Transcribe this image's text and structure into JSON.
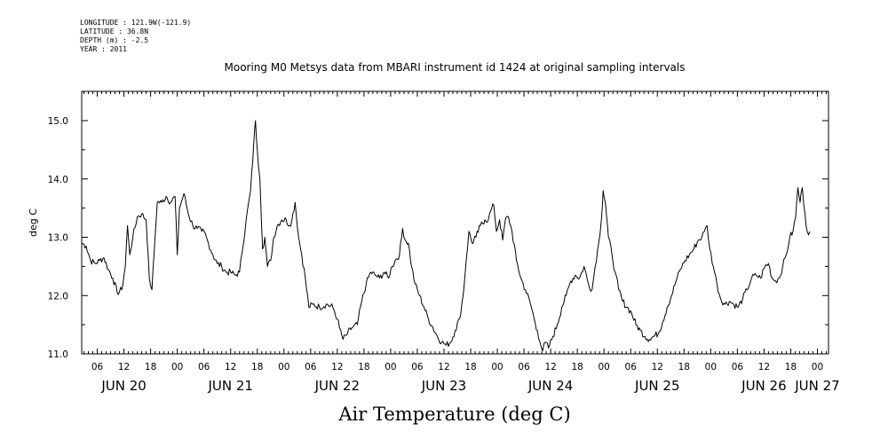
{
  "metadata": [
    "LONGITUDE : 121.9W(-121.9)",
    "LATITUDE : 36.8N",
    "DEPTH (m) : -2.5",
    "YEAR : 2011"
  ],
  "chart_data": {
    "type": "line",
    "title": "Mooring M0 Metsys data from MBARI instrument id 1424 at original sampling intervals",
    "xlabel": "Air Temperature (deg C)",
    "ylabel": "deg C",
    "ylim": [
      11.0,
      15.5
    ],
    "yticks": [
      "11.0",
      "12.0",
      "13.0",
      "14.0",
      "15.0"
    ],
    "x_unit": "hours since JUN 20 00:00 (2011)",
    "xlim": [
      2.5,
      170.5
    ],
    "hour_tick_labels": [
      {
        "hour": 6,
        "label": "06"
      },
      {
        "hour": 12,
        "label": "12"
      },
      {
        "hour": 18,
        "label": "18"
      },
      {
        "hour": 24,
        "label": "00"
      },
      {
        "hour": 30,
        "label": "06"
      },
      {
        "hour": 36,
        "label": "12"
      },
      {
        "hour": 42,
        "label": "18"
      },
      {
        "hour": 48,
        "label": "00"
      },
      {
        "hour": 54,
        "label": "06"
      },
      {
        "hour": 60,
        "label": "12"
      },
      {
        "hour": 66,
        "label": "18"
      },
      {
        "hour": 72,
        "label": "00"
      },
      {
        "hour": 78,
        "label": "06"
      },
      {
        "hour": 84,
        "label": "12"
      },
      {
        "hour": 90,
        "label": "18"
      },
      {
        "hour": 96,
        "label": "00"
      },
      {
        "hour": 102,
        "label": "06"
      },
      {
        "hour": 108,
        "label": "12"
      },
      {
        "hour": 114,
        "label": "18"
      },
      {
        "hour": 120,
        "label": "00"
      },
      {
        "hour": 126,
        "label": "06"
      },
      {
        "hour": 132,
        "label": "12"
      },
      {
        "hour": 138,
        "label": "18"
      },
      {
        "hour": 144,
        "label": "00"
      },
      {
        "hour": 150,
        "label": "06"
      },
      {
        "hour": 156,
        "label": "12"
      },
      {
        "hour": 162,
        "label": "18"
      },
      {
        "hour": 168,
        "label": "00"
      }
    ],
    "day_labels": [
      {
        "hour": 12,
        "label": "JUN 20"
      },
      {
        "hour": 36,
        "label": "JUN 21"
      },
      {
        "hour": 60,
        "label": "JUN 22"
      },
      {
        "hour": 84,
        "label": "JUN 23"
      },
      {
        "hour": 108,
        "label": "JUN 24"
      },
      {
        "hour": 132,
        "label": "JUN 25"
      },
      {
        "hour": 156,
        "label": "JUN 26"
      },
      {
        "hour": 168,
        "label": "JUN 27"
      }
    ],
    "series": [
      {
        "color": "#000000",
        "points": [
          [
            2.5,
            12.9
          ],
          [
            3.5,
            12.85
          ],
          [
            4.5,
            12.6
          ],
          [
            5.5,
            12.55
          ],
          [
            6.5,
            12.6
          ],
          [
            7.5,
            12.65
          ],
          [
            8.5,
            12.45
          ],
          [
            9.5,
            12.3
          ],
          [
            10.5,
            12.05
          ],
          [
            11.5,
            12.1
          ],
          [
            12.3,
            12.5
          ],
          [
            12.8,
            13.2
          ],
          [
            13.3,
            12.7
          ],
          [
            14,
            13.0
          ],
          [
            15,
            13.35
          ],
          [
            16,
            13.4
          ],
          [
            17,
            13.3
          ],
          [
            17.7,
            12.3
          ],
          [
            18.3,
            12.1
          ],
          [
            19,
            13.0
          ],
          [
            19.5,
            13.6
          ],
          [
            20.5,
            13.6
          ],
          [
            21.5,
            13.7
          ],
          [
            22.5,
            13.6
          ],
          [
            23.5,
            13.7
          ],
          [
            24,
            12.7
          ],
          [
            24.5,
            13.5
          ],
          [
            25.5,
            13.75
          ],
          [
            26.5,
            13.4
          ],
          [
            27.5,
            13.2
          ],
          [
            28.5,
            13.15
          ],
          [
            29.5,
            13.1
          ],
          [
            30,
            13.1
          ],
          [
            31,
            12.9
          ],
          [
            32,
            12.7
          ],
          [
            33,
            12.55
          ],
          [
            34,
            12.5
          ],
          [
            35,
            12.4
          ],
          [
            36,
            12.4
          ],
          [
            37,
            12.35
          ],
          [
            38,
            12.4
          ],
          [
            38.5,
            12.7
          ],
          [
            39.5,
            13.3
          ],
          [
            40.5,
            13.8
          ],
          [
            41.2,
            14.6
          ],
          [
            41.6,
            15.0
          ],
          [
            42,
            14.5
          ],
          [
            42.6,
            14.0
          ],
          [
            43.2,
            12.8
          ],
          [
            43.7,
            13.0
          ],
          [
            44.3,
            12.5
          ],
          [
            45,
            12.6
          ],
          [
            45.7,
            13.0
          ],
          [
            46.5,
            13.2
          ],
          [
            47.5,
            13.3
          ],
          [
            48.5,
            13.3
          ],
          [
            49.2,
            13.2
          ],
          [
            49.8,
            13.3
          ],
          [
            50.5,
            13.6
          ],
          [
            51.3,
            13.0
          ],
          [
            52,
            12.7
          ],
          [
            52.8,
            12.3
          ],
          [
            53.6,
            11.8
          ],
          [
            54.5,
            11.85
          ],
          [
            56,
            11.8
          ],
          [
            57.5,
            11.85
          ],
          [
            59,
            11.8
          ],
          [
            60,
            11.6
          ],
          [
            60.5,
            11.45
          ],
          [
            61.3,
            11.25
          ],
          [
            62.3,
            11.35
          ],
          [
            63.3,
            11.45
          ],
          [
            64.5,
            11.5
          ],
          [
            65.5,
            11.9
          ],
          [
            66.5,
            12.2
          ],
          [
            67.5,
            12.4
          ],
          [
            68.5,
            12.35
          ],
          [
            69.5,
            12.3
          ],
          [
            70.5,
            12.4
          ],
          [
            71.5,
            12.3
          ],
          [
            72.3,
            12.5
          ],
          [
            73,
            12.6
          ],
          [
            74,
            12.7
          ],
          [
            74.7,
            13.15
          ],
          [
            75.3,
            12.95
          ],
          [
            76,
            12.9
          ],
          [
            76.7,
            12.5
          ],
          [
            77.5,
            12.2
          ],
          [
            78.5,
            12.0
          ],
          [
            79.5,
            11.8
          ],
          [
            80.5,
            11.6
          ],
          [
            81.5,
            11.45
          ],
          [
            82.5,
            11.3
          ],
          [
            83.5,
            11.2
          ],
          [
            84.5,
            11.15
          ],
          [
            85.5,
            11.2
          ],
          [
            86.5,
            11.4
          ],
          [
            87.5,
            11.6
          ],
          [
            88.3,
            12.0
          ],
          [
            89,
            12.6
          ],
          [
            89.6,
            13.1
          ],
          [
            90.3,
            12.9
          ],
          [
            91.2,
            13.0
          ],
          [
            92.2,
            13.2
          ],
          [
            93.2,
            13.3
          ],
          [
            94,
            13.3
          ],
          [
            94.5,
            13.45
          ],
          [
            95.2,
            13.55
          ],
          [
            95.8,
            13.1
          ],
          [
            96.5,
            13.3
          ],
          [
            97.2,
            12.95
          ],
          [
            97.8,
            13.3
          ],
          [
            98.5,
            13.35
          ],
          [
            99.3,
            13.1
          ],
          [
            100.3,
            12.6
          ],
          [
            101.3,
            12.3
          ],
          [
            102.3,
            12.1
          ],
          [
            103.3,
            11.9
          ],
          [
            104.3,
            11.6
          ],
          [
            105,
            11.4
          ],
          [
            105.6,
            11.2
          ],
          [
            106.2,
            11.05
          ],
          [
            106.8,
            11.2
          ],
          [
            107.5,
            11.1
          ],
          [
            108.5,
            11.3
          ],
          [
            109.5,
            11.5
          ],
          [
            110.5,
            11.8
          ],
          [
            111.5,
            12.0
          ],
          [
            112.5,
            12.25
          ],
          [
            113.5,
            12.35
          ],
          [
            114.5,
            12.3
          ],
          [
            115.5,
            12.5
          ],
          [
            116.5,
            12.2
          ],
          [
            117.3,
            12.1
          ],
          [
            118,
            12.5
          ],
          [
            118.8,
            12.9
          ],
          [
            119.4,
            13.3
          ],
          [
            119.8,
            13.8
          ],
          [
            120.3,
            13.6
          ],
          [
            121,
            13.0
          ],
          [
            121.8,
            12.7
          ],
          [
            122.5,
            12.4
          ],
          [
            123.3,
            12.1
          ],
          [
            124.2,
            11.9
          ],
          [
            125.2,
            11.8
          ],
          [
            126.2,
            11.7
          ],
          [
            127.2,
            11.5
          ],
          [
            128.2,
            11.4
          ],
          [
            129.2,
            11.3
          ],
          [
            130.2,
            11.25
          ],
          [
            131.2,
            11.3
          ],
          [
            132.2,
            11.35
          ],
          [
            133.2,
            11.55
          ],
          [
            134.2,
            11.8
          ],
          [
            135.2,
            12.0
          ],
          [
            136.2,
            12.25
          ],
          [
            137.2,
            12.45
          ],
          [
            138.2,
            12.6
          ],
          [
            139.2,
            12.7
          ],
          [
            140.2,
            12.8
          ],
          [
            141.2,
            12.95
          ],
          [
            142,
            13.0
          ],
          [
            142.6,
            13.1
          ],
          [
            143.2,
            13.2
          ],
          [
            143.8,
            12.8
          ],
          [
            144.6,
            12.5
          ],
          [
            145.4,
            12.2
          ],
          [
            146.2,
            11.95
          ],
          [
            147.2,
            11.85
          ],
          [
            148.2,
            11.9
          ],
          [
            149.2,
            11.85
          ],
          [
            150.2,
            11.8
          ],
          [
            151.2,
            11.95
          ],
          [
            152.2,
            12.1
          ],
          [
            153.2,
            12.3
          ],
          [
            154.2,
            12.35
          ],
          [
            155.2,
            12.3
          ],
          [
            156.2,
            12.5
          ],
          [
            157,
            12.55
          ],
          [
            157.8,
            12.3
          ],
          [
            158.6,
            12.25
          ],
          [
            159.4,
            12.3
          ],
          [
            160.2,
            12.5
          ],
          [
            161,
            12.7
          ],
          [
            161.8,
            13.0
          ],
          [
            162.5,
            13.1
          ],
          [
            163.1,
            13.35
          ],
          [
            163.6,
            13.85
          ],
          [
            164.1,
            13.6
          ],
          [
            164.6,
            13.85
          ],
          [
            165.2,
            13.4
          ],
          [
            165.7,
            13.1
          ],
          [
            166.3,
            13.1
          ]
        ]
      }
    ]
  }
}
